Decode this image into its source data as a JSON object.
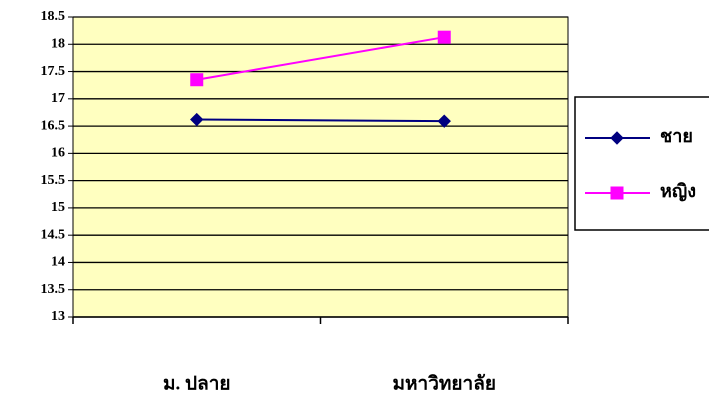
{
  "chart_data": {
    "type": "line",
    "categories": [
      "ม. ปลาย",
      "มหาวิทยาลัย"
    ],
    "series": [
      {
        "name": "ชาย",
        "color": "#000080",
        "marker": "diamond",
        "values": [
          16.62,
          16.59
        ]
      },
      {
        "name": "หญิง",
        "color": "#ff00ff",
        "marker": "square",
        "values": [
          17.35,
          18.13
        ]
      }
    ],
    "ylim": [
      13,
      18.5
    ],
    "yticks": [
      13,
      13.5,
      14,
      14.5,
      15,
      15.5,
      16,
      16.5,
      17,
      17.5,
      18,
      18.5
    ],
    "grid": true,
    "plot_background": "#ffffc0",
    "legend": "right"
  }
}
